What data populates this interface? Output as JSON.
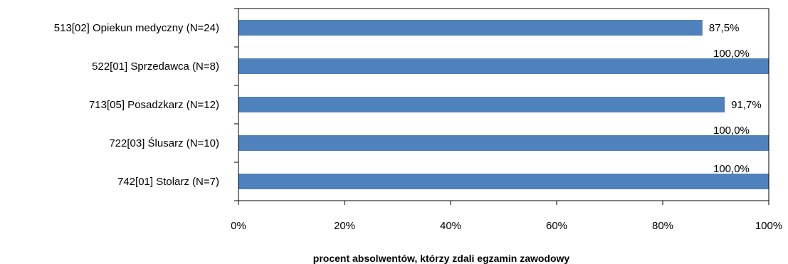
{
  "chart_data": {
    "type": "bar",
    "orientation": "horizontal",
    "categories": [
      "513[02] Opiekun medyczny (N=24)",
      "522[01] Sprzedawca (N=8)",
      "713[05] Posadzkarz (N=12)",
      "722[03] Ślusarz (N=10)",
      "742[01] Stolarz (N=7)"
    ],
    "values": [
      87.5,
      100.0,
      91.7,
      100.0,
      100.0
    ],
    "data_labels": [
      "87,5%",
      "100,0%",
      "91,7%",
      "100,0%",
      "100,0%"
    ],
    "xlim": [
      0,
      100
    ],
    "xticks": [
      0,
      20,
      40,
      60,
      80,
      100
    ],
    "xtick_labels": [
      "0%",
      "20%",
      "40%",
      "60%",
      "80%",
      "100%"
    ],
    "xlabel": "procent absolwentów, którzy zdali egzamin zawodowy",
    "ylabel": "",
    "title": "",
    "grid": false,
    "legend": "none",
    "bar_color": "#4F81BD"
  }
}
